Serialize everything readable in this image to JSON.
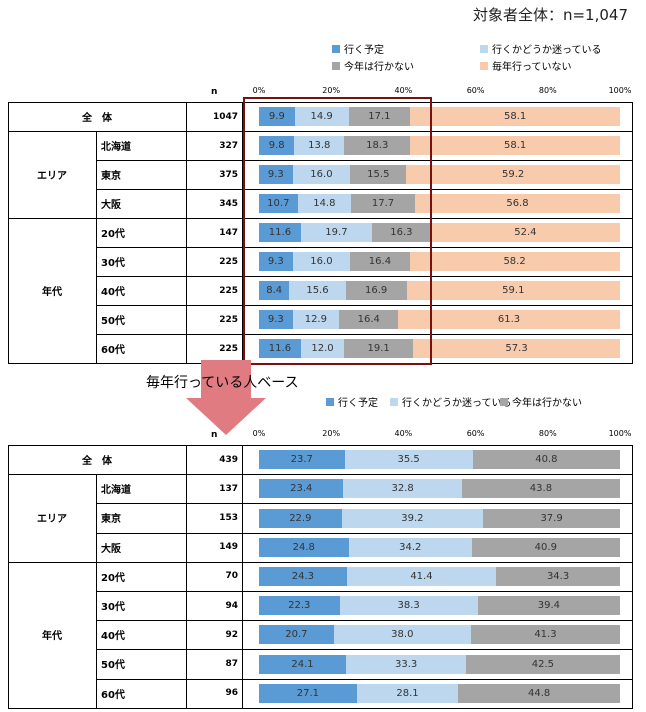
{
  "title": "対象者全体：n=1,047",
  "n_header": "n",
  "arrow_label": "毎年行っている人ベース",
  "colors": {
    "go": "#5b9bd5",
    "unsure": "#bdd7ee",
    "no_go": "#a5a5a5",
    "not_every_year": "#f8cbad"
  },
  "chart_data": [
    {
      "type": "bar",
      "stacked": true,
      "orientation": "horizontal",
      "title": "対象者全体：n=1,047",
      "axis_ticks": [
        "0%",
        "20%",
        "40%",
        "60%",
        "80%",
        "100%"
      ],
      "xlim": [
        0,
        100
      ],
      "legend": [
        "行く予定",
        "行くかどうか迷っている",
        "今年は行かない",
        "毎年行っていない"
      ],
      "groups": [
        {
          "label": "",
          "rows": [
            {
              "label": "全　体",
              "n": "1047",
              "values": [
                9.9,
                14.9,
                17.1,
                58.1
              ]
            }
          ]
        },
        {
          "label": "エリア",
          "rows": [
            {
              "label": "北海道",
              "n": "327",
              "values": [
                9.8,
                13.8,
                18.3,
                58.1
              ]
            },
            {
              "label": "東京",
              "n": "375",
              "values": [
                9.3,
                16.0,
                15.5,
                59.2
              ]
            },
            {
              "label": "大阪",
              "n": "345",
              "values": [
                10.7,
                14.8,
                17.7,
                56.8
              ]
            }
          ]
        },
        {
          "label": "年代",
          "rows": [
            {
              "label": "20代",
              "n": "147",
              "values": [
                11.6,
                19.7,
                16.3,
                52.4
              ]
            },
            {
              "label": "30代",
              "n": "225",
              "values": [
                9.3,
                16.0,
                16.4,
                58.2
              ]
            },
            {
              "label": "40代",
              "n": "225",
              "values": [
                8.4,
                15.6,
                16.9,
                59.1
              ]
            },
            {
              "label": "50代",
              "n": "225",
              "values": [
                9.3,
                12.9,
                16.4,
                61.3
              ]
            },
            {
              "label": "60代",
              "n": "225",
              "values": [
                11.6,
                12.0,
                19.1,
                57.3
              ]
            }
          ]
        }
      ]
    },
    {
      "type": "bar",
      "stacked": true,
      "orientation": "horizontal",
      "title": "毎年行っている人ベース",
      "axis_ticks": [
        "0%",
        "20%",
        "40%",
        "60%",
        "80%",
        "100%"
      ],
      "xlim": [
        0,
        100
      ],
      "legend": [
        "行く予定",
        "行くかどうか迷っている",
        "今年は行かない"
      ],
      "groups": [
        {
          "label": "",
          "rows": [
            {
              "label": "全　体",
              "n": "439",
              "values": [
                23.7,
                35.5,
                40.8
              ]
            }
          ]
        },
        {
          "label": "エリア",
          "rows": [
            {
              "label": "北海道",
              "n": "137",
              "values": [
                23.4,
                32.8,
                43.8
              ]
            },
            {
              "label": "東京",
              "n": "153",
              "values": [
                22.9,
                39.2,
                37.9
              ]
            },
            {
              "label": "大阪",
              "n": "149",
              "values": [
                24.8,
                34.2,
                40.9
              ]
            }
          ]
        },
        {
          "label": "年代",
          "rows": [
            {
              "label": "20代",
              "n": "70",
              "values": [
                24.3,
                41.4,
                34.3
              ]
            },
            {
              "label": "30代",
              "n": "94",
              "values": [
                22.3,
                38.3,
                39.4
              ]
            },
            {
              "label": "40代",
              "n": "92",
              "values": [
                20.7,
                38.0,
                41.3
              ]
            },
            {
              "label": "50代",
              "n": "87",
              "values": [
                24.1,
                33.3,
                42.5
              ]
            },
            {
              "label": "60代",
              "n": "96",
              "values": [
                27.1,
                28.1,
                44.8
              ]
            }
          ]
        }
      ]
    }
  ]
}
